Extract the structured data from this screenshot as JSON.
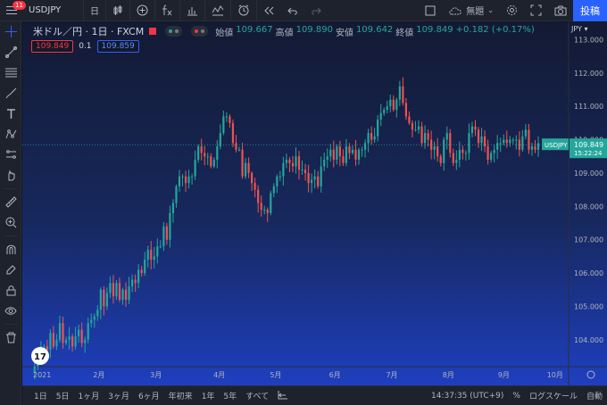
{
  "topbar": {
    "notifications": "11",
    "symbol": "USDJPY",
    "interval": "日",
    "no_name_label": "無題",
    "publish_label": "投稿"
  },
  "legend": {
    "title": "米ドル／円 · 1日 · FXCM",
    "open_label": "始値",
    "open_value": "109.667",
    "high_label": "高値",
    "high_value": "109.890",
    "low_label": "安値",
    "low_value": "109.642",
    "close_label": "終値",
    "close_value": "109.849",
    "change": "+0.182 (+0.17%)"
  },
  "trade": {
    "sell_price": "109.849",
    "spread": "0.1",
    "buy_price": "109.859"
  },
  "currency_selector": "JPY ▾",
  "last_price_label": {
    "symbol": "USDJPY",
    "price": "109.849",
    "countdown": "15:22:24"
  },
  "colors": {
    "up": "#26a69a",
    "down": "#ef5350",
    "accent": "#2962ff",
    "bg": "#131722"
  },
  "chart_data": {
    "type": "candlestick",
    "symbol": "USDJPY",
    "y_ticks": [
      104.0,
      105.0,
      106.0,
      107.0,
      108.0,
      109.0,
      110.0,
      111.0,
      112.0,
      113.0
    ],
    "y_tick_labels": [
      "104.000",
      "105.000",
      "106.000",
      "107.000",
      "108.000",
      "109.000",
      "110.000",
      "111.000",
      "112.000",
      "113.000"
    ],
    "ylim": [
      103.3,
      113.2
    ],
    "x_labels": [
      "2021",
      "2月",
      "3月",
      "4月",
      "5月",
      "6月",
      "7月",
      "8月",
      "9月",
      "10月"
    ],
    "last_price": 109.849,
    "closes": [
      103.2,
      103.6,
      103.8,
      103.8,
      103.7,
      104.2,
      103.8,
      104.0,
      104.5,
      103.9,
      104.0,
      104.1,
      103.8,
      104.1,
      104.3,
      103.9,
      104.0,
      104.5,
      104.6,
      104.7,
      104.9,
      105.5,
      105.0,
      105.4,
      105.7,
      105.3,
      105.7,
      105.2,
      105.5,
      105.2,
      105.6,
      105.8,
      105.7,
      106.1,
      106.0,
      106.4,
      106.7,
      106.4,
      106.5,
      106.8,
      106.8,
      107.4,
      107.0,
      107.8,
      108.1,
      108.6,
      108.9,
      108.9,
      108.7,
      108.9,
      108.9,
      109.4,
      109.8,
      109.6,
      109.5,
      109.5,
      109.2,
      109.4,
      109.8,
      110.2,
      110.7,
      110.7,
      110.5,
      109.9,
      109.7,
      109.7,
      108.9,
      109.3,
      109.0,
      108.7,
      108.5,
      108.1,
      107.9,
      107.9,
      107.8,
      108.4,
      108.6,
      108.9,
      108.9,
      109.3,
      109.4,
      109.3,
      109.2,
      109.5,
      109.1,
      109.1,
      109.0,
      108.7,
      108.8,
      108.9,
      108.6,
      109.2,
      109.4,
      109.5,
      109.7,
      109.4,
      109.8,
      109.5,
      109.3,
      109.8,
      109.6,
      109.7,
      109.4,
      109.7,
      109.7,
      109.9,
      110.2,
      110.0,
      110.1,
      110.6,
      110.8,
      110.9,
      111.0,
      111.2,
      110.9,
      111.2,
      111.6,
      111.1,
      110.7,
      110.5,
      110.3,
      110.3,
      110.4,
      109.9,
      110.2,
      110.0,
      109.7,
      109.8,
      109.5,
      109.3,
      110.0,
      110.2,
      109.6,
      109.3,
      109.4,
      109.7,
      109.6,
      109.6,
      110.2,
      110.4,
      110.3,
      109.9,
      110.1,
      109.8,
      109.4,
      109.6,
      109.7,
      109.9,
      109.9,
      110.0,
      109.9,
      110.0,
      110.0,
      110.0,
      109.7,
      110.1,
      110.3,
      109.7,
      109.8,
      109.7,
      109.9
    ]
  },
  "bottombar": {
    "ranges": [
      "1日",
      "5日",
      "1ヶ月",
      "3ヶ月",
      "6ヶ月",
      "年初来",
      "1年",
      "5年",
      "すべて"
    ],
    "time": "14:37:35 (UTC+9)",
    "percent": "%",
    "log": "ログスケール",
    "auto": "自動"
  }
}
